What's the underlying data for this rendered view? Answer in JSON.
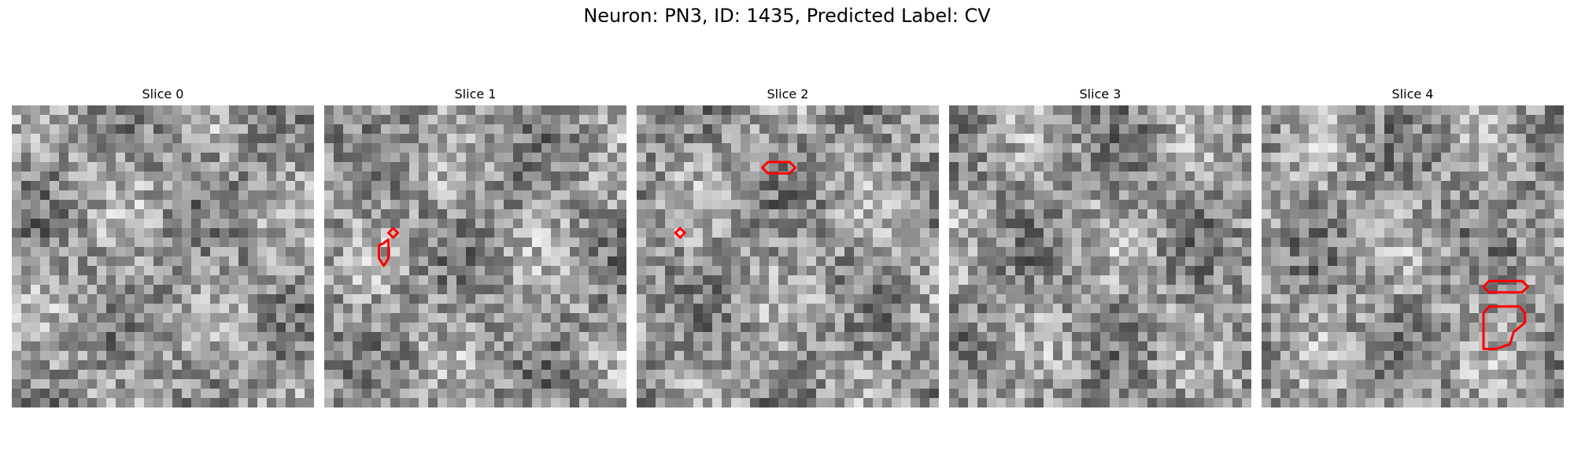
{
  "figure": {
    "title": "Neuron: PN3, ID: 1435, Predicted Label: CV"
  },
  "grid": {
    "cells": 32
  },
  "contour_color": "#ff0000",
  "slices": [
    {
      "label": "Slice 0",
      "seed": 11,
      "contours": []
    },
    {
      "label": "Slice 1",
      "seed": 27,
      "contours": [
        [
          [
            7.3,
            14.0
          ],
          [
            7.8,
            13.5
          ],
          [
            7.3,
            13.0
          ],
          [
            6.8,
            13.5
          ]
        ],
        [
          [
            6.3,
            14.6
          ],
          [
            6.8,
            14.2
          ],
          [
            6.8,
            16.2
          ],
          [
            6.3,
            17.0
          ],
          [
            5.8,
            16.2
          ],
          [
            5.8,
            14.8
          ]
        ]
      ]
    },
    {
      "label": "Slice 2",
      "seed": 43,
      "contours": [
        [
          [
            13.9,
            6.0
          ],
          [
            16.2,
            6.0
          ],
          [
            16.8,
            6.6
          ],
          [
            16.2,
            7.2
          ],
          [
            13.9,
            7.2
          ],
          [
            13.3,
            6.6
          ]
        ],
        [
          [
            4.1,
            13.5
          ],
          [
            4.6,
            13.0
          ],
          [
            5.1,
            13.5
          ],
          [
            4.6,
            14.0
          ]
        ]
      ]
    },
    {
      "label": "Slice 3",
      "seed": 59,
      "contours": []
    },
    {
      "label": "Slice 4",
      "seed": 71,
      "contours": [
        [
          [
            24.1,
            18.6
          ],
          [
            27.6,
            18.6
          ],
          [
            28.2,
            19.2
          ],
          [
            27.6,
            19.8
          ],
          [
            24.1,
            19.8
          ],
          [
            23.5,
            19.2
          ]
        ],
        [
          [
            24.1,
            21.3
          ],
          [
            27.3,
            21.3
          ],
          [
            27.9,
            22.0
          ],
          [
            27.9,
            23.0
          ],
          [
            26.7,
            24.0
          ],
          [
            26.3,
            25.3
          ],
          [
            24.8,
            25.8
          ],
          [
            23.5,
            25.8
          ],
          [
            23.5,
            22.0
          ]
        ]
      ]
    }
  ]
}
